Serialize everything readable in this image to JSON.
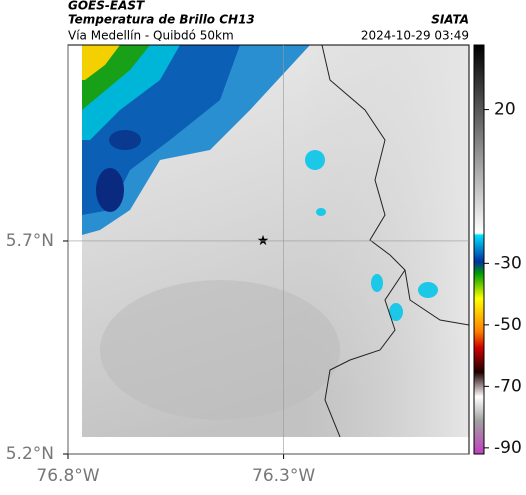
{
  "header": {
    "source": "GOES-EAST",
    "title": "Temperatura de Brillo CH13",
    "brand": "SIATA",
    "subtitle": "Vía Medellín - Quibdó 50km",
    "timestamp": "2024-10-29 03:49"
  },
  "map": {
    "xlim": [
      -76.8,
      -75.87
    ],
    "ylim": [
      5.2,
      6.16
    ],
    "xticks": [
      {
        "value": -76.8,
        "label": "76.8°W"
      },
      {
        "value": -76.3,
        "label": "76.3°W"
      }
    ],
    "yticks": [
      {
        "value": 5.2,
        "label": "5.2°N"
      },
      {
        "value": 5.7,
        "label": "5.7°N"
      }
    ]
  },
  "colorbar": {
    "lim": [
      -92,
      41
    ],
    "ticks": [
      20,
      -30,
      -50,
      -70,
      -90
    ]
  }
}
